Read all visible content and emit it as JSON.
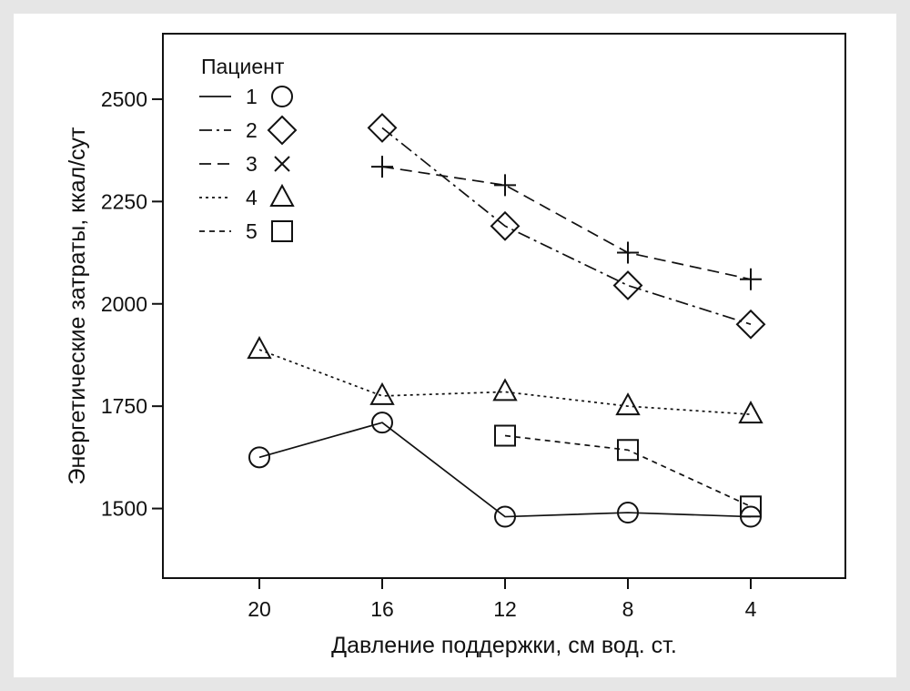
{
  "chart_data": {
    "type": "line",
    "title": "",
    "xlabel": "Давление поддержки, см вод. ст.",
    "ylabel": "Энергетические затраты, ккал/сут",
    "x_ticks": [
      "20",
      "16",
      "12",
      "8",
      "4"
    ],
    "y_ticks": [
      "1500",
      "1750",
      "2000",
      "2250",
      "2500"
    ],
    "ylim": [
      1330,
      2660
    ],
    "legend_title": "Пациент",
    "legend_position": "top-left",
    "series": [
      {
        "name": "1",
        "line_style": "solid",
        "marker": "circle",
        "x": [
          "20",
          "16",
          "12",
          "8",
          "4"
        ],
        "values": [
          1625,
          1710,
          1480,
          1490,
          1480
        ]
      },
      {
        "name": "2",
        "line_style": "dashdot",
        "marker": "diamond",
        "x": [
          "16",
          "12",
          "8",
          "4"
        ],
        "values": [
          2430,
          2190,
          2045,
          1950
        ]
      },
      {
        "name": "3",
        "line_style": "dashed",
        "marker": "plus",
        "legend_marker": "cross",
        "x": [
          "16",
          "12",
          "8",
          "4"
        ],
        "values": [
          2335,
          2290,
          2125,
          2060
        ]
      },
      {
        "name": "4",
        "line_style": "dotted",
        "marker": "triangle",
        "x": [
          "20",
          "16",
          "12",
          "8",
          "4"
        ],
        "values": [
          1888,
          1775,
          1785,
          1750,
          1730
        ]
      },
      {
        "name": "5",
        "line_style": "shortdash",
        "marker": "square",
        "x": [
          "12",
          "8",
          "4"
        ],
        "values": [
          1678,
          1643,
          1505
        ]
      }
    ]
  }
}
